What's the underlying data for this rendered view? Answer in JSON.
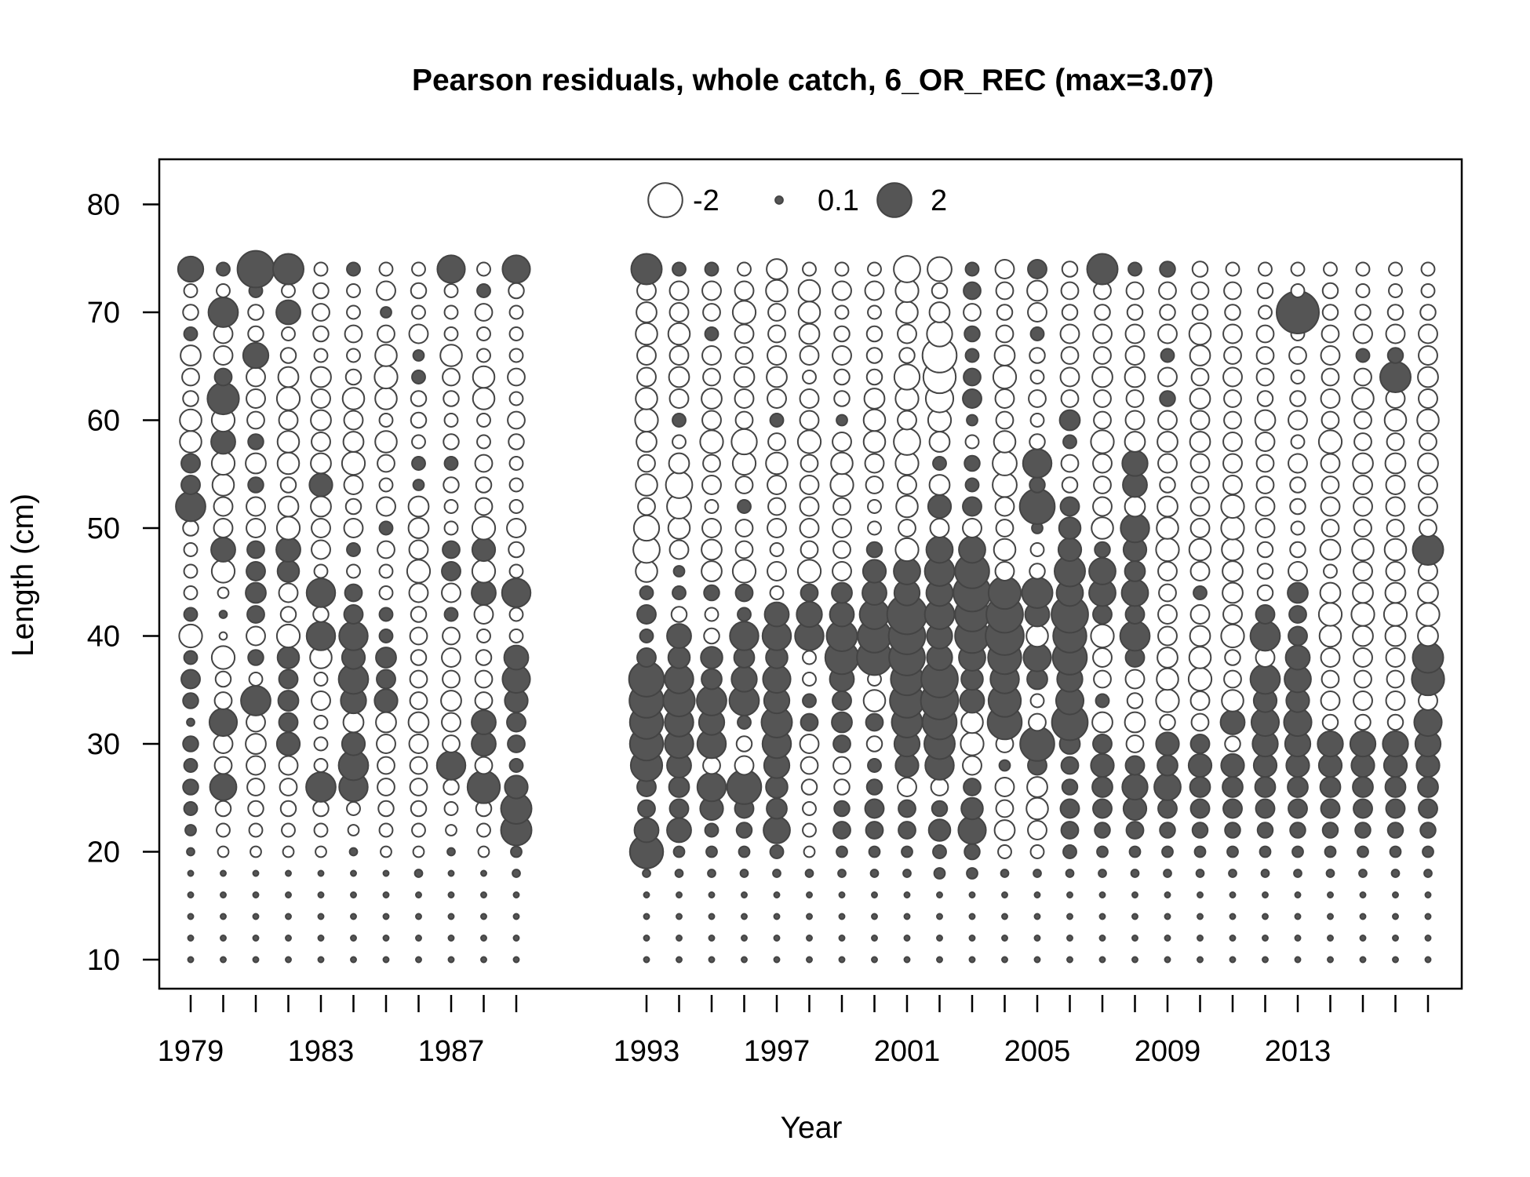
{
  "chart_data": {
    "type": "scatter",
    "subtype": "bubble",
    "title": "Pearson residuals, whole catch, 6_OR_REC (max=3.07)",
    "xlabel": "Year",
    "ylabel": "Length (cm)",
    "xlim": [
      1978,
      2017
    ],
    "ylim": [
      9,
      85
    ],
    "x_tick_values": [
      1979,
      1980,
      1981,
      1982,
      1983,
      1984,
      1985,
      1986,
      1987,
      1988,
      1989,
      1993,
      1994,
      1995,
      1996,
      1997,
      1998,
      1999,
      2000,
      2001,
      2002,
      2003,
      2004,
      2005,
      2006,
      2007,
      2008,
      2009,
      2010,
      2011,
      2012,
      2013,
      2014,
      2015,
      2016,
      2017
    ],
    "x_tick_labels": [
      "1979",
      "1983",
      "1987",
      "1993",
      "1997",
      "2001",
      "2005",
      "2009",
      "2013"
    ],
    "y_ticks": [
      "10",
      "20",
      "30",
      "40",
      "50",
      "60",
      "70",
      "80"
    ],
    "legend": {
      "position": "top-center",
      "entries": [
        {
          "label": "-2",
          "value": -2
        },
        {
          "label": "0.1",
          "value": 0.1
        },
        {
          "label": "2",
          "value": 2
        }
      ]
    },
    "colors": {
      "negative_fill": "#ffffff",
      "positive_fill": "#555555",
      "stroke": "#444444"
    },
    "years": [
      1979,
      1980,
      1981,
      1982,
      1983,
      1984,
      1985,
      1986,
      1987,
      1988,
      1989,
      1993,
      1994,
      1995,
      1996,
      1997,
      1998,
      1999,
      2000,
      2001,
      2002,
      2003,
      2004,
      2005,
      2006,
      2007,
      2008,
      2009,
      2010,
      2011,
      2012,
      2013,
      2014,
      2015,
      2016,
      2017
    ],
    "lengths": [
      10,
      12,
      14,
      16,
      18,
      20,
      22,
      24,
      26,
      28,
      30,
      32,
      34,
      36,
      38,
      40,
      42,
      44,
      46,
      48,
      50,
      52,
      54,
      56,
      58,
      60,
      62,
      64,
      66,
      68,
      70,
      72,
      74
    ],
    "residual_max": 3.07,
    "residuals": [
      [
        0.05,
        0.05,
        0.05,
        0.05,
        0.05,
        0.1,
        0.2,
        0.3,
        0.4,
        0.3,
        0.4,
        0.1,
        0.4,
        0.6,
        0.3,
        -0.9,
        0.3,
        -0.3,
        -0.3,
        -0.3,
        -0.4,
        1.5,
        0.6,
        0.6,
        -0.8,
        -0.8,
        -0.4,
        -0.5,
        -0.7,
        0.3,
        -0.4,
        -0.3,
        1.1
      ],
      [
        0.05,
        0.05,
        0.05,
        0.05,
        0.05,
        -0.2,
        -0.3,
        -0.4,
        1.2,
        -0.5,
        -0.6,
        1.3,
        -0.5,
        -0.4,
        -0.9,
        -0.1,
        0.1,
        -0.2,
        -0.9,
        1.0,
        -0.6,
        -0.6,
        -0.8,
        -0.9,
        1.0,
        -0.9,
        1.7,
        0.5,
        -0.6,
        -0.6,
        1.5,
        -0.3,
        0.3
      ],
      [
        0.05,
        0.05,
        0.05,
        0.05,
        0.05,
        -0.2,
        -0.3,
        -0.4,
        -0.5,
        -0.6,
        -0.7,
        -0.6,
        1.5,
        -0.3,
        0.4,
        -0.6,
        0.5,
        0.7,
        0.6,
        0.5,
        -0.6,
        -0.6,
        0.4,
        -0.7,
        0.4,
        -0.5,
        -0.6,
        -0.6,
        1.1,
        -0.4,
        -0.4,
        0.3,
        2.3
      ],
      [
        0.05,
        0.05,
        0.05,
        0.05,
        0.05,
        -0.2,
        -0.3,
        -0.4,
        -0.5,
        -0.6,
        0.9,
        0.6,
        0.7,
        0.6,
        0.8,
        -0.9,
        -0.4,
        -0.6,
        0.8,
        1.0,
        -0.9,
        -0.7,
        -0.4,
        -0.8,
        -0.8,
        -0.6,
        -0.9,
        -0.7,
        -0.4,
        -0.3,
        1.0,
        -0.3,
        1.6
      ],
      [
        0.05,
        0.05,
        0.05,
        0.05,
        0.05,
        -0.2,
        -0.3,
        -0.4,
        1.5,
        -0.3,
        -0.3,
        -0.3,
        -0.6,
        -0.3,
        -0.8,
        1.4,
        -0.4,
        1.4,
        -0.3,
        -0.6,
        -0.6,
        -0.7,
        0.9,
        -0.7,
        -0.6,
        -0.7,
        -0.6,
        -0.7,
        -0.3,
        -0.4,
        -0.5,
        -0.4,
        -0.3
      ],
      [
        0.05,
        0.05,
        0.05,
        0.05,
        0.05,
        0.1,
        -0.2,
        -0.3,
        1.4,
        1.5,
        0.9,
        -0.7,
        1.1,
        1.5,
        0.9,
        1.4,
        0.6,
        0.5,
        -0.3,
        0.3,
        -0.6,
        -0.4,
        -0.6,
        -0.9,
        -0.7,
        -0.6,
        -0.8,
        -0.4,
        -0.3,
        -0.5,
        -0.3,
        -0.3,
        0.3
      ],
      [
        0.05,
        0.05,
        0.05,
        0.05,
        0.05,
        -0.2,
        -0.3,
        -0.4,
        -0.5,
        -0.5,
        -0.6,
        -0.7,
        0.9,
        0.6,
        0.7,
        0.3,
        0.3,
        -0.3,
        -0.3,
        -0.5,
        0.3,
        -0.6,
        -0.3,
        -0.5,
        -0.8,
        -0.3,
        -0.8,
        -0.9,
        -0.8,
        -0.5,
        0.2,
        -0.6,
        -0.3
      ],
      [
        0.05,
        0.05,
        0.05,
        0.05,
        0.1,
        -0.2,
        -0.3,
        -0.4,
        -0.5,
        -0.5,
        -0.6,
        -0.7,
        -0.5,
        -0.5,
        -0.4,
        -0.5,
        -0.4,
        -0.6,
        -0.9,
        -0.6,
        -0.7,
        -0.7,
        0.2,
        0.3,
        -0.3,
        -0.4,
        -0.4,
        0.3,
        0.2,
        -0.6,
        -0.3,
        -0.4,
        -0.3
      ],
      [
        0.05,
        0.05,
        0.05,
        0.05,
        0.05,
        0.1,
        -0.2,
        -0.3,
        -0.4,
        1.4,
        -0.5,
        -0.6,
        -0.7,
        -0.5,
        -0.6,
        -0.5,
        0.3,
        -0.6,
        0.6,
        0.5,
        -0.3,
        -0.3,
        -0.4,
        0.3,
        -0.4,
        -0.3,
        -0.4,
        -0.5,
        -0.8,
        -0.3,
        -0.3,
        -0.3,
        1.3
      ],
      [
        0.05,
        0.05,
        0.05,
        0.05,
        0.05,
        -0.2,
        -0.3,
        -0.4,
        1.8,
        -0.5,
        1.0,
        1.0,
        -0.5,
        -0.5,
        -0.4,
        -0.3,
        -0.6,
        1.0,
        -0.9,
        0.9,
        -0.9,
        -0.5,
        -0.4,
        -0.5,
        -0.3,
        -0.3,
        -0.8,
        -0.8,
        -0.3,
        -0.3,
        -0.5,
        0.3,
        -0.3
      ],
      [
        0.05,
        0.05,
        0.05,
        0.05,
        0.1,
        0.2,
        1.6,
        1.6,
        0.9,
        0.3,
        0.5,
        0.6,
        0.9,
        1.3,
        1.0,
        -0.3,
        -0.3,
        1.4,
        -0.3,
        -0.4,
        -0.6,
        -0.3,
        -0.3,
        -0.3,
        -0.4,
        -0.5,
        -0.3,
        -0.5,
        -0.3,
        -0.3,
        -0.3,
        -0.4,
        1.3
      ],
      [
        0.05,
        0.05,
        0.05,
        0.05,
        0.1,
        1.9,
        1.0,
        0.5,
        0.6,
        1.7,
        1.9,
        1.9,
        2.0,
        2.1,
        0.6,
        0.3,
        0.6,
        0.3,
        -0.8,
        -1.2,
        -1.1,
        -0.5,
        -0.8,
        -0.5,
        -0.7,
        -0.9,
        -0.8,
        -0.6,
        -0.6,
        -0.8,
        -0.7,
        -0.6,
        1.6
      ],
      [
        0.05,
        0.05,
        0.05,
        0.05,
        0.1,
        0.2,
        1.0,
        0.6,
        0.7,
        1.0,
        1.4,
        1.4,
        1.7,
        1.4,
        0.8,
        1.0,
        -0.4,
        0.3,
        0.2,
        -0.6,
        -0.8,
        -1.0,
        -1.2,
        -0.7,
        -0.3,
        0.3,
        -0.6,
        -0.7,
        -0.6,
        -0.8,
        -0.6,
        -0.6,
        0.3
      ],
      [
        0.05,
        0.05,
        0.05,
        0.05,
        0.1,
        0.2,
        0.3,
        0.9,
        1.4,
        -0.5,
        1.4,
        1.1,
        1.5,
        0.7,
        0.8,
        -0.4,
        -0.3,
        0.4,
        -0.7,
        -0.7,
        -0.6,
        -0.3,
        -0.6,
        -0.5,
        -0.9,
        -0.6,
        -0.7,
        -0.5,
        -0.6,
        0.3,
        -0.5,
        -0.6,
        0.3
      ],
      [
        0.05,
        0.05,
        0.05,
        0.05,
        0.1,
        0.2,
        0.4,
        0.6,
        2.0,
        -0.6,
        -0.4,
        0.3,
        1.5,
        1.1,
        0.7,
        1.4,
        0.3,
        0.5,
        -0.9,
        -0.5,
        -0.5,
        0.3,
        -0.5,
        -0.9,
        -1.1,
        -0.5,
        -0.6,
        -0.7,
        -0.5,
        -0.6,
        -0.9,
        -0.6,
        -0.3
      ],
      [
        0.05,
        0.05,
        0.05,
        0.05,
        0.1,
        0.3,
        1.2,
        0.7,
        0.8,
        1.1,
        1.4,
        1.6,
        1.1,
        1.3,
        0.8,
        1.4,
        1.0,
        -0.3,
        -0.6,
        -0.3,
        -0.6,
        -0.5,
        -0.6,
        -0.8,
        -0.5,
        0.3,
        -0.6,
        -0.7,
        -0.6,
        -0.5,
        -0.5,
        -0.8,
        -0.7
      ],
      [
        0.05,
        0.05,
        0.05,
        0.05,
        0.1,
        -0.2,
        -0.3,
        -0.3,
        -0.4,
        -0.5,
        -0.6,
        0.5,
        0.3,
        -0.3,
        -0.3,
        1.4,
        1.1,
        0.5,
        -0.9,
        -0.5,
        -0.6,
        -0.6,
        -0.6,
        -0.5,
        -0.9,
        -0.6,
        -0.6,
        -0.3,
        -0.6,
        -0.7,
        -0.8,
        -0.8,
        -0.3
      ],
      [
        0.05,
        0.05,
        0.05,
        0.05,
        0.1,
        0.2,
        0.5,
        0.4,
        -0.4,
        -0.5,
        0.5,
        0.7,
        0.6,
        1.0,
        1.9,
        1.6,
        1.0,
        0.7,
        -0.6,
        -0.5,
        -0.6,
        -0.5,
        -0.9,
        -0.8,
        -0.6,
        0.2,
        -0.4,
        -0.4,
        -0.6,
        -0.4,
        -0.3,
        -0.6,
        -0.3
      ],
      [
        0.05,
        0.05,
        0.05,
        0.05,
        0.1,
        0.2,
        0.5,
        0.6,
        0.4,
        0.3,
        -0.4,
        0.5,
        -0.8,
        -0.3,
        2.1,
        1.9,
        1.5,
        1.0,
        0.9,
        0.4,
        -0.3,
        -0.3,
        -0.5,
        -0.6,
        -0.8,
        -0.8,
        -0.7,
        -0.4,
        -0.4,
        -0.4,
        -0.3,
        -0.6,
        -0.3
      ],
      [
        0.05,
        0.05,
        0.05,
        0.05,
        0.1,
        0.2,
        0.5,
        0.5,
        -0.6,
        0.9,
        1.1,
        1.6,
        2.0,
        1.8,
        2.2,
        2.3,
        2.7,
        1.1,
        1.2,
        -0.9,
        -0.5,
        -0.8,
        -0.6,
        -0.9,
        -1.2,
        -0.6,
        -0.9,
        -1.1,
        -0.4,
        -0.6,
        -0.8,
        -0.9,
        -1.2
      ],
      [
        0.05,
        0.05,
        0.05,
        0.05,
        0.2,
        0.3,
        0.8,
        0.4,
        -0.5,
        1.4,
        1.6,
        2.0,
        2.4,
        2.3,
        1.1,
        1.1,
        1.5,
        1.2,
        1.5,
        1.2,
        -0.6,
        0.9,
        -0.7,
        0.3,
        -0.7,
        -0.9,
        -1.3,
        -1.8,
        -2.0,
        -1.1,
        -0.7,
        -0.4,
        -1.0
      ],
      [
        0.05,
        0.05,
        0.05,
        0.05,
        0.2,
        0.4,
        1.3,
        0.8,
        0.5,
        -0.6,
        -0.9,
        -0.8,
        1.0,
        0.8,
        1.2,
        2.0,
        2.0,
        2.4,
        2.0,
        1.2,
        -0.6,
        0.6,
        0.3,
        0.4,
        -0.3,
        0.2,
        0.6,
        0.5,
        0.3,
        0.4,
        -0.5,
        0.5,
        0.3
      ],
      [
        0.05,
        0.05,
        0.05,
        0.05,
        0.1,
        -0.3,
        -0.7,
        -0.5,
        -0.6,
        0.2,
        -0.5,
        2.0,
        1.8,
        1.4,
        1.9,
        2.5,
        2.3,
        1.8,
        -0.6,
        -0.8,
        -0.5,
        -0.6,
        -1.0,
        -1.0,
        -0.8,
        -0.5,
        -0.6,
        -0.9,
        -0.7,
        -0.5,
        -0.4,
        -0.5,
        -0.6
      ],
      [
        0.05,
        0.05,
        0.05,
        0.05,
        0.1,
        -0.3,
        -0.6,
        -0.8,
        -0.7,
        0.6,
        2.0,
        -0.5,
        -0.3,
        0.7,
        1.3,
        -0.8,
        1.0,
        1.6,
        -0.4,
        -0.3,
        0.2,
        2.1,
        0.4,
        1.4,
        -0.4,
        -0.3,
        -0.5,
        -0.3,
        -0.4,
        0.3,
        -0.6,
        -0.7,
        0.6
      ],
      [
        0.05,
        0.05,
        0.05,
        0.05,
        0.1,
        0.3,
        0.5,
        0.6,
        0.4,
        0.5,
        0.7,
        2.2,
        1.3,
        1.1,
        2.0,
        1.9,
        2.3,
        1.2,
        1.6,
        0.9,
        0.8,
        0.6,
        -0.4,
        -0.5,
        0.3,
        0.7,
        -0.5,
        -0.6,
        -0.5,
        -0.6,
        -0.4,
        -0.5,
        -0.4
      ],
      [
        0.05,
        0.05,
        0.05,
        0.05,
        0.1,
        0.2,
        0.4,
        0.6,
        0.7,
        0.9,
        0.6,
        -0.7,
        0.3,
        -0.5,
        -0.6,
        -0.9,
        0.6,
        1.2,
        1.2,
        0.4,
        -0.8,
        -0.6,
        -0.5,
        -0.6,
        -0.9,
        -0.5,
        -0.5,
        -0.7,
        -0.5,
        -0.6,
        -0.4,
        -0.5,
        1.6
      ],
      [
        0.05,
        0.05,
        0.05,
        0.05,
        0.1,
        0.2,
        0.5,
        0.9,
        1.1,
        0.6,
        -0.5,
        -0.7,
        -0.4,
        -0.6,
        0.6,
        1.5,
        0.6,
        1.2,
        0.7,
        0.9,
        1.4,
        -0.7,
        1.0,
        1.1,
        -0.7,
        -0.6,
        -0.5,
        -0.7,
        -0.6,
        -0.6,
        -0.4,
        -0.5,
        0.3
      ],
      [
        0.05,
        0.05,
        0.05,
        0.05,
        0.1,
        0.2,
        0.4,
        0.6,
        1.2,
        0.7,
        0.9,
        -0.4,
        -0.9,
        -0.8,
        -0.7,
        -0.6,
        -0.6,
        -0.5,
        -0.6,
        -0.9,
        -0.8,
        -0.7,
        -0.4,
        -0.6,
        -0.7,
        -0.6,
        0.4,
        -0.6,
        0.3,
        -0.6,
        -0.4,
        -0.5,
        0.4
      ],
      [
        0.05,
        0.05,
        0.05,
        0.05,
        0.1,
        0.2,
        0.4,
        0.6,
        0.7,
        0.9,
        0.6,
        -0.5,
        -0.6,
        -0.9,
        -0.8,
        -0.7,
        -0.6,
        0.3,
        -0.6,
        -0.8,
        -0.6,
        -0.6,
        -0.5,
        -0.6,
        -0.7,
        -0.6,
        -0.7,
        -0.5,
        -0.7,
        -0.8,
        -0.4,
        -0.5,
        -0.4
      ],
      [
        0.05,
        0.05,
        0.05,
        0.05,
        0.1,
        0.2,
        0.4,
        0.6,
        0.7,
        0.9,
        -0.4,
        1.0,
        -0.8,
        -0.5,
        -0.4,
        -0.9,
        -0.6,
        -0.7,
        -0.7,
        -0.8,
        -0.9,
        -0.9,
        -0.6,
        -0.6,
        -0.6,
        -0.5,
        -0.5,
        -0.6,
        -0.5,
        -0.6,
        -0.4,
        -0.5,
        -0.3
      ],
      [
        0.05,
        0.05,
        0.05,
        0.05,
        0.1,
        0.2,
        0.4,
        0.6,
        0.7,
        0.9,
        1.1,
        1.3,
        0.9,
        1.5,
        -0.6,
        1.5,
        0.6,
        -0.4,
        -0.4,
        -0.4,
        -0.6,
        -0.6,
        -0.5,
        -0.5,
        -0.6,
        -0.7,
        -0.4,
        -0.5,
        -0.5,
        -0.5,
        -0.3,
        -0.4,
        -0.3
      ],
      [
        0.05,
        0.05,
        0.05,
        0.05,
        0.1,
        0.2,
        0.4,
        0.6,
        0.7,
        0.9,
        1.1,
        1.3,
        0.9,
        1.2,
        1.0,
        0.6,
        0.5,
        0.7,
        -0.6,
        -0.4,
        -0.3,
        -0.4,
        -0.4,
        -0.6,
        -0.3,
        -0.6,
        -0.4,
        -0.3,
        -0.5,
        -0.3,
        3.07,
        -0.3,
        -0.3
      ],
      [
        0.05,
        0.05,
        0.05,
        0.05,
        0.1,
        0.2,
        0.4,
        0.6,
        0.7,
        0.9,
        1.1,
        -0.4,
        -0.6,
        -0.5,
        -0.6,
        -0.8,
        -0.9,
        -0.7,
        -0.3,
        -0.7,
        -0.5,
        -0.6,
        -0.5,
        -0.6,
        -0.9,
        -0.5,
        -0.6,
        -0.5,
        -0.6,
        -0.5,
        -0.4,
        -0.4,
        -0.3
      ],
      [
        0.05,
        0.05,
        0.05,
        0.05,
        0.1,
        0.2,
        0.4,
        0.6,
        0.7,
        0.9,
        1.1,
        -0.4,
        -0.6,
        -0.5,
        -0.6,
        -0.7,
        -0.9,
        -0.7,
        -0.6,
        -0.8,
        -0.5,
        -0.6,
        -0.6,
        -0.7,
        -0.5,
        -0.5,
        -0.8,
        -0.5,
        0.3,
        -0.6,
        -0.4,
        -0.3,
        -0.3
      ],
      [
        0.05,
        0.05,
        0.05,
        0.05,
        0.1,
        0.2,
        0.4,
        0.6,
        0.7,
        0.9,
        1.1,
        -0.4,
        -0.6,
        -0.5,
        -0.6,
        -0.7,
        -0.9,
        -0.7,
        -0.6,
        -0.8,
        -0.5,
        -0.6,
        -0.6,
        -0.7,
        -0.5,
        -0.8,
        -0.6,
        1.6,
        0.4,
        -0.6,
        -0.4,
        -0.3,
        -0.3
      ],
      [
        0.05,
        0.05,
        0.05,
        0.05,
        0.1,
        0.2,
        0.4,
        0.6,
        0.7,
        0.9,
        1.1,
        1.3,
        -0.6,
        1.8,
        1.6,
        -0.7,
        -0.9,
        -0.7,
        -0.6,
        1.6,
        -0.5,
        -0.6,
        -0.6,
        -0.7,
        -0.5,
        -0.8,
        -0.6,
        -0.7,
        -0.6,
        -0.6,
        -0.4,
        -0.3,
        -0.3
      ]
    ]
  }
}
